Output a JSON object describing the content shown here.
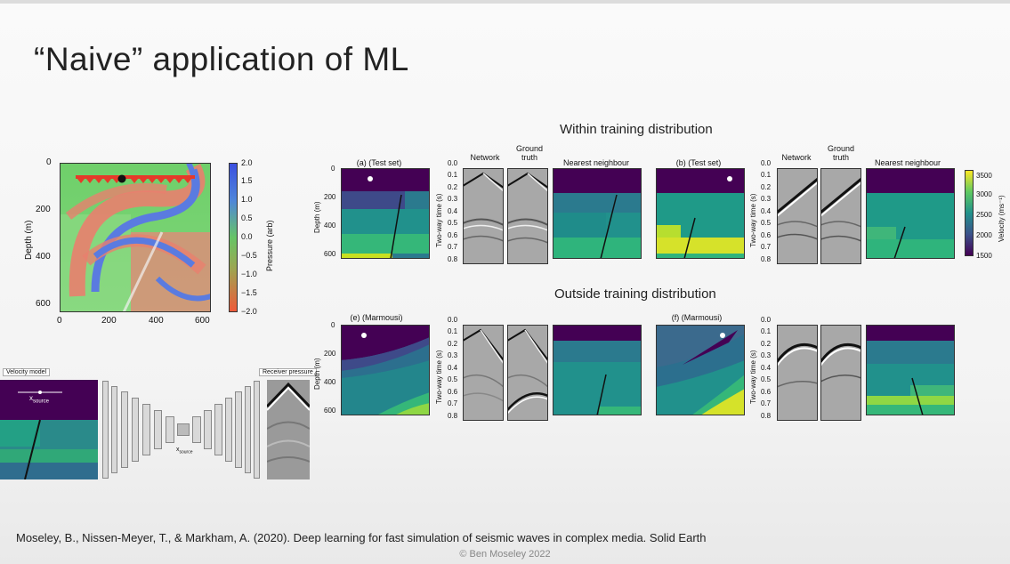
{
  "slide": {
    "title": "“Naive” application of ML",
    "reference": "Moseley, B., Nissen-Meyer, T., & Markham, A. (2020). Deep learning for fast simulation of seismic waves in complex media. Solid Earth",
    "copyright": "© Ben Moseley 2022"
  },
  "wavefield": {
    "ylabel": "Depth (m)",
    "yticks": [
      "0",
      "200",
      "400",
      "600"
    ],
    "xticks": [
      "0",
      "200",
      "400",
      "600"
    ],
    "colorbar_label": "Pressure (arb)",
    "colorbar_ticks": [
      "2.0",
      "1.5",
      "1.0",
      "0.5",
      "0.0",
      "−0.5",
      "−1.0",
      "−1.5",
      "−2.0"
    ]
  },
  "network_diagram": {
    "input_label": "Velocity model",
    "output_label": "Receiver pressure",
    "source_label": "x",
    "source_sub": "source"
  },
  "within": {
    "heading": "Within training distribution",
    "panel_a": "(a) (Test set)",
    "panel_b": "(b) (Test set)",
    "network": "Network",
    "ground_truth_1": "Ground",
    "ground_truth_2": "truth",
    "nearest": "Nearest neighbour"
  },
  "outside": {
    "heading": "Outside training distribution",
    "panel_e": "(e) (Marmousi)",
    "panel_f": "(f) (Marmousi)"
  },
  "axes": {
    "depth_label": "Depth (m)",
    "depth_ticks": [
      "0",
      "200",
      "400",
      "600"
    ],
    "time_label": "Two-way time (s)",
    "time_ticks": [
      "0.0",
      "0.1",
      "0.2",
      "0.3",
      "0.4",
      "0.5",
      "0.6",
      "0.7",
      "0.8"
    ]
  },
  "velocity_colorbar": {
    "label": "Velocity (ms⁻¹)",
    "ticks": [
      "3500",
      "3000",
      "2500",
      "2000",
      "1500"
    ]
  },
  "colors": {
    "viridis_dark": "#440154",
    "viridis_blue": "#31688e",
    "viridis_teal": "#21918c",
    "viridis_green": "#35b779",
    "viridis_yellow": "#c8e020"
  }
}
